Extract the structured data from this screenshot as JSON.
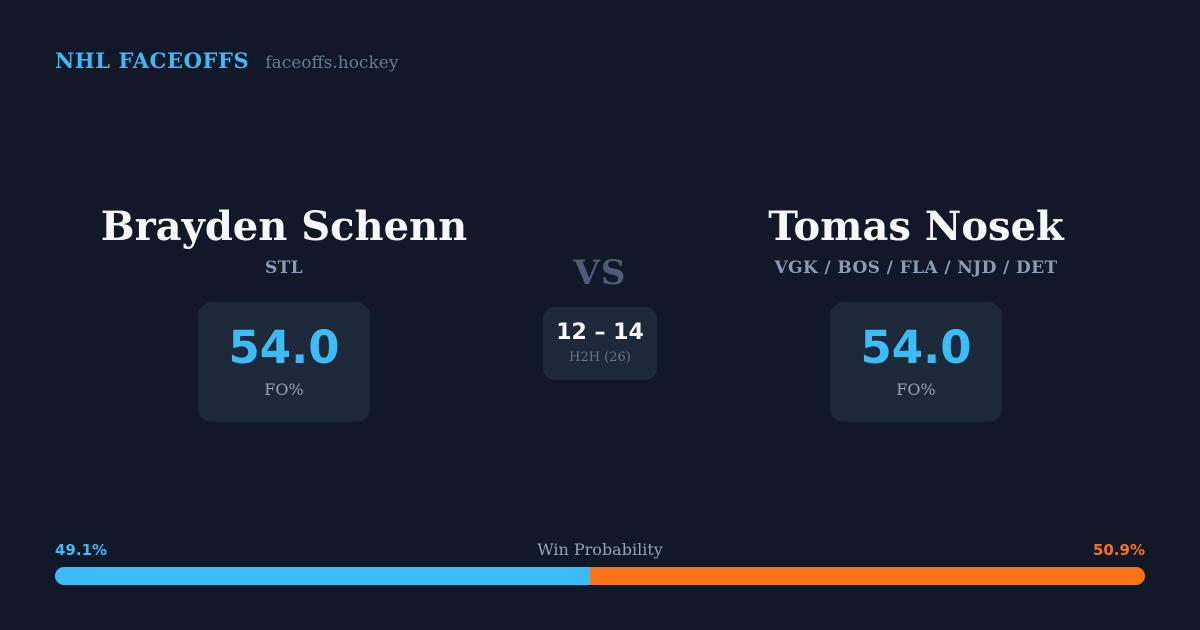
{
  "header": {
    "brand": "NHL FACEOFFS",
    "site": "faceoffs.hockey"
  },
  "matchup": {
    "vs_label": "VS",
    "h2h": {
      "score": "12 – 14",
      "label": "H2H (26)"
    },
    "players": [
      {
        "name": "Brayden Schenn",
        "teams": "STL",
        "stat_value": "54.0",
        "stat_label": "FO%"
      },
      {
        "name": "Tomas Nosek",
        "teams": "VGK / BOS / FLA / NJD / DET",
        "stat_value": "54.0",
        "stat_label": "FO%"
      }
    ]
  },
  "win_probability": {
    "label": "Win Probability",
    "left_pct": "49.1%",
    "right_pct": "50.9%",
    "left_value": 49.1,
    "right_value": 50.9
  },
  "colors": {
    "background": "#111827",
    "card": "#1d2938",
    "accent_blue": "#3bbcf8",
    "accent_orange": "#f97316",
    "muted_text": "#8b9cb6"
  },
  "chart_data": {
    "type": "bar",
    "title": "Win Probability",
    "orientation": "horizontal-stacked",
    "categories": [
      "Brayden Schenn",
      "Tomas Nosek"
    ],
    "series": [
      {
        "name": "Win Probability %",
        "values": [
          49.1,
          50.9
        ]
      },
      {
        "name": "FO%",
        "values": [
          54.0,
          54.0
        ]
      },
      {
        "name": "H2H wins (of 26 faceoffs)",
        "values": [
          12,
          14
        ]
      }
    ],
    "xlim": [
      0,
      100
    ],
    "grid": false,
    "legend": false,
    "colors": [
      "#3bbcf8",
      "#f97316"
    ]
  }
}
